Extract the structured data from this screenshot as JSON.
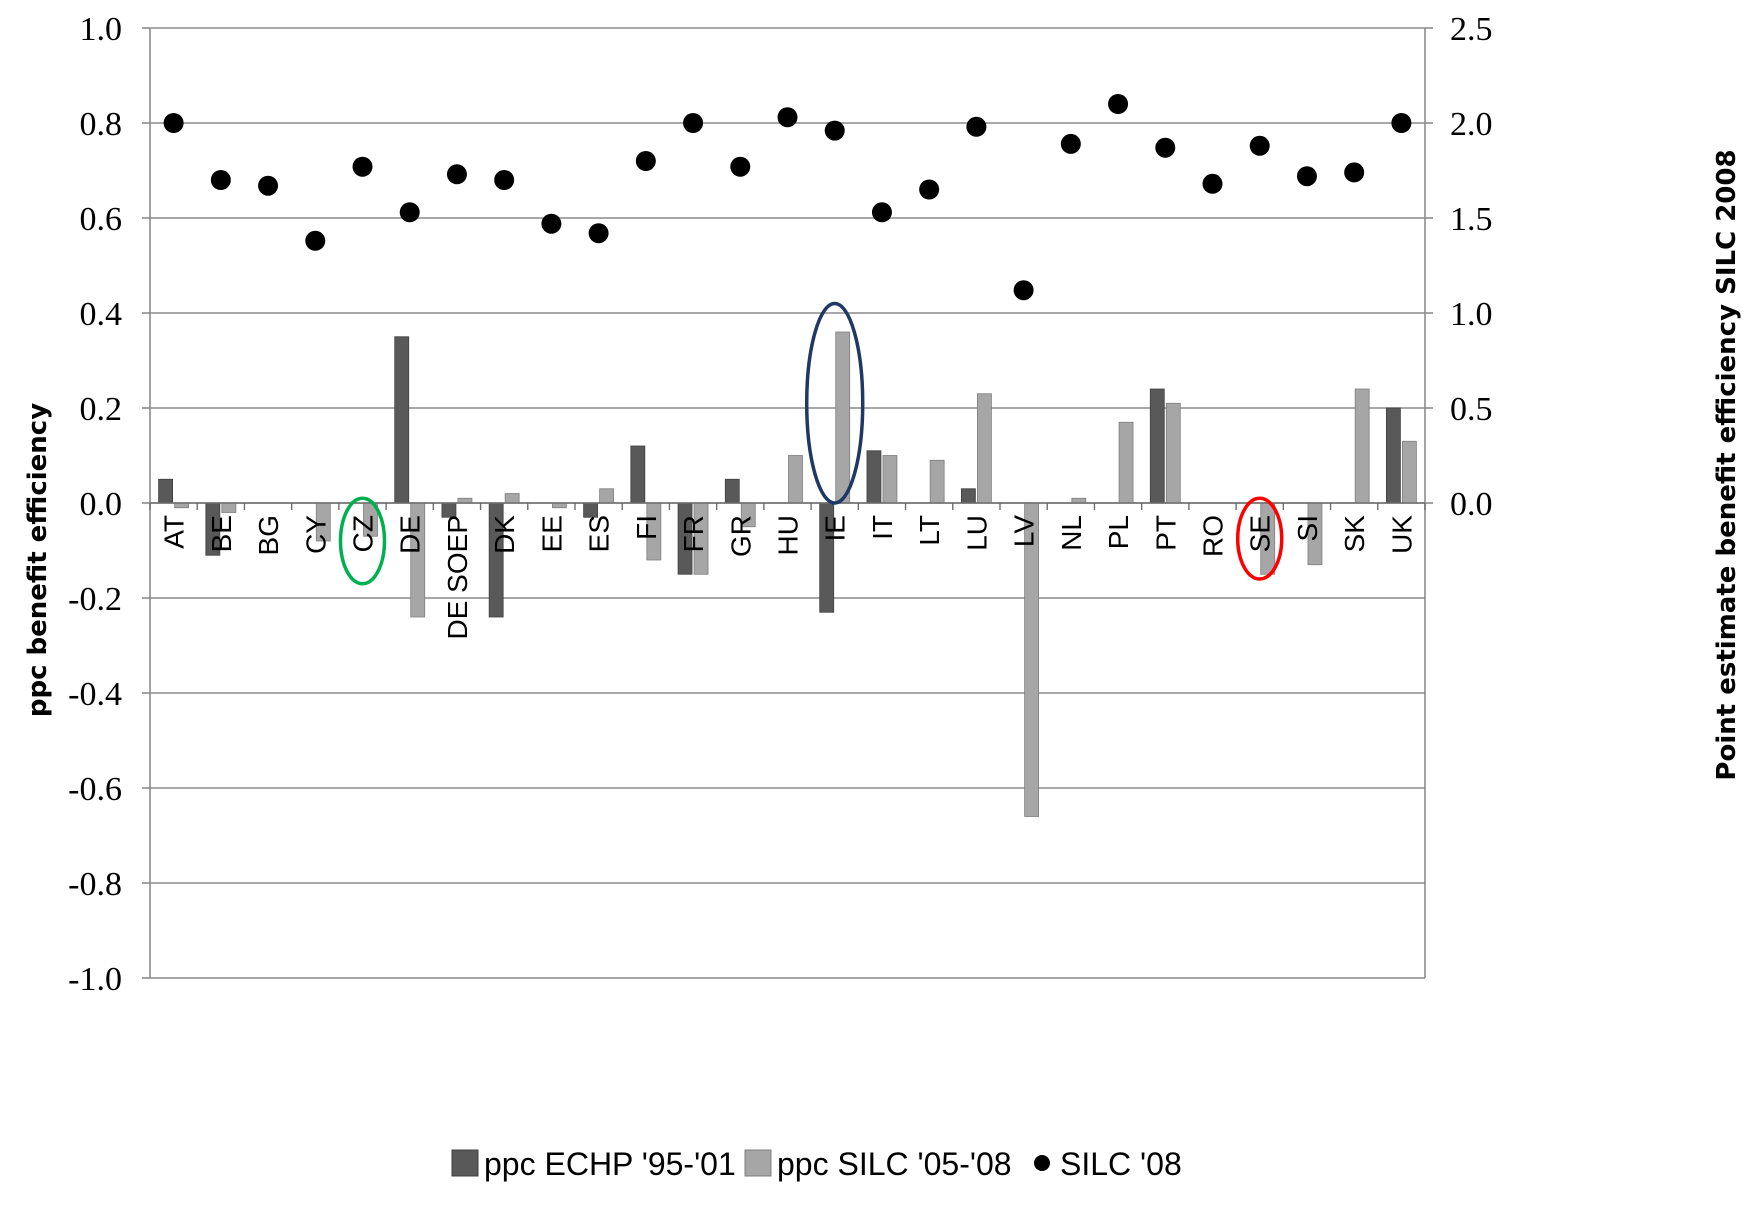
{
  "chart_data": {
    "type": "bar",
    "ylabel": "ppc benefit efficiency",
    "ylabel_right": "Point estimate benefit efficiency SILC 2008",
    "ylim": [
      -1.0,
      1.0
    ],
    "ylim_right": [
      -2.5,
      2.5
    ],
    "yticks": [
      "1.0",
      "0.8",
      "0.6",
      "0.4",
      "0.2",
      "0.0",
      "-0.2",
      "-0.4",
      "-0.6",
      "-0.8",
      "-1.0"
    ],
    "yticks_right": [
      "2.5",
      "2.0",
      "1.5",
      "1.0",
      "0.5",
      "0.0"
    ],
    "grid": true,
    "legend_position": "bottom",
    "categories": [
      "AT",
      "BE",
      "BG",
      "CY",
      "CZ",
      "DE",
      "DE SOEP",
      "DK",
      "EE",
      "ES",
      "FI",
      "FR",
      "GR",
      "HU",
      "IE",
      "IT",
      "LT",
      "LU",
      "LV",
      "NL",
      "PL",
      "PT",
      "RO",
      "SE",
      "SI",
      "SK",
      "UK"
    ],
    "series": [
      {
        "name": "ppc ECHP '95-'01",
        "kind": "bar",
        "color": "#595959",
        "values": [
          0.05,
          -0.11,
          null,
          null,
          null,
          0.35,
          -0.03,
          -0.24,
          null,
          -0.03,
          0.12,
          -0.15,
          0.05,
          null,
          -0.23,
          0.11,
          null,
          0.03,
          null,
          null,
          null,
          0.24,
          null,
          null,
          null,
          null,
          0.2
        ]
      },
      {
        "name": "ppc SILC '05-'08",
        "kind": "bar",
        "color": "#a6a6a6",
        "values": [
          -0.01,
          -0.02,
          null,
          -0.08,
          -0.07,
          -0.24,
          0.01,
          0.02,
          -0.01,
          0.03,
          -0.12,
          -0.15,
          -0.05,
          0.1,
          0.36,
          0.1,
          0.09,
          0.23,
          -0.66,
          0.01,
          0.17,
          0.21,
          null,
          -0.15,
          -0.13,
          0.24,
          0.13
        ]
      },
      {
        "name": "SILC '08",
        "kind": "scatter",
        "axis": "right",
        "color": "#000000",
        "values": [
          2.0,
          1.7,
          1.67,
          1.38,
          1.77,
          1.53,
          1.73,
          1.7,
          1.47,
          1.42,
          1.8,
          2.0,
          1.77,
          2.03,
          1.96,
          1.53,
          1.65,
          1.98,
          1.12,
          1.89,
          2.1,
          1.87,
          1.68,
          1.88,
          1.72,
          1.74,
          2.0
        ]
      }
    ],
    "highlights": [
      {
        "category": "CZ",
        "color": "#00b050"
      },
      {
        "category": "IE",
        "color": "#1f3864"
      },
      {
        "category": "SE",
        "color": "#ff0000"
      }
    ]
  }
}
